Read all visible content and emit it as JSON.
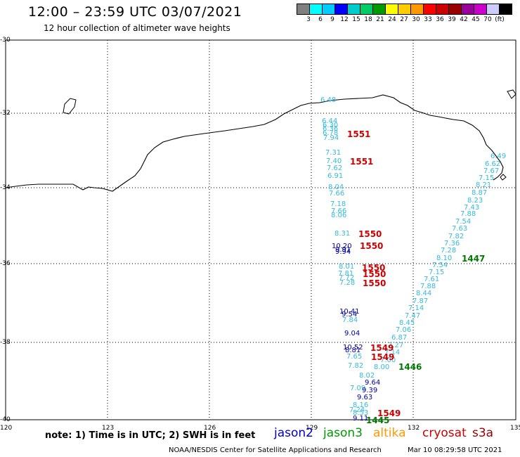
{
  "header": {
    "title": "12:00 – 23:59 UTC 03/07/2021",
    "subtitle": "12 hour collection of altimeter wave heights"
  },
  "legend": {
    "colors": [
      "#808080",
      "#00ffff",
      "#00ccff",
      "#0000ff",
      "#00cccc",
      "#00cc66",
      "#009900",
      "#ffff00",
      "#ffcc00",
      "#ff9900",
      "#ff0000",
      "#cc0000",
      "#990000",
      "#990099",
      "#cc00cc",
      "#ccccff",
      "#000000"
    ],
    "labels": [
      "3",
      "6",
      "9",
      "12",
      "15",
      "18",
      "21",
      "24",
      "27",
      "30",
      "33",
      "36",
      "39",
      "42",
      "45",
      "70"
    ],
    "unit": "(ft)"
  },
  "axes": {
    "lat_labels": [
      "-30",
      "-32",
      "-34",
      "-36",
      "-38",
      "-40"
    ],
    "lon_labels": [
      "120",
      "123",
      "126",
      "129",
      "132",
      "135"
    ]
  },
  "footer": {
    "note": "note: 1) Time is in UTC; 2) SWH is in feet",
    "satellites": [
      {
        "name": "jason2",
        "color": "#0000cc"
      },
      {
        "name": "jason3",
        "color": "#009900"
      },
      {
        "name": "altika",
        "color": "#ff9900"
      },
      {
        "name": "cryosat",
        "color": "#cc0000"
      },
      {
        "name": "s3a",
        "color": "#990000"
      }
    ],
    "credit": "NOAA/NESDIS Center for Satellite Applications and Research",
    "timestamp": "Mar 10 08:29:58 UTC 2021"
  },
  "observations": {
    "values": [
      "6.48",
      "6.44",
      "6.30",
      "6.36",
      "6.78",
      "7.94",
      "7.31",
      "7.40",
      "7.62",
      "6.91",
      "8.04",
      "7.66",
      "7.18",
      "7.66",
      "8.06",
      "8.31",
      "10.20",
      "9.91",
      "9.94",
      "8.01",
      "7.81",
      "7.72",
      "7.28",
      "10.41",
      "9.54",
      "7.84",
      "9.04",
      "10.52",
      "8.81",
      "7.65",
      "7.82",
      "8.02",
      "9.64",
      "7.09",
      "9.39",
      "9.63",
      "8.16",
      "7.24",
      "8.53",
      "9.11",
      "6.49",
      "6.62",
      "7.67",
      "7.15",
      "8.21",
      "8.87",
      "8.23",
      "7.43",
      "7.88",
      "7.54",
      "7.63",
      "7.82",
      "7.36",
      "7.28",
      "8.10",
      "7.54",
      "7.15",
      "7.61",
      "7.88",
      "8.44",
      "7.87",
      "7.14",
      "7.47",
      "8.45",
      "7.06",
      "6.87",
      "7.27",
      "7.14",
      "7.00",
      "8.00"
    ],
    "times": [
      "1551",
      "1551",
      "1550",
      "1550",
      "1550",
      "1550",
      "1550",
      "1549",
      "1549",
      "1549",
      "1447",
      "1446",
      "1445"
    ]
  }
}
